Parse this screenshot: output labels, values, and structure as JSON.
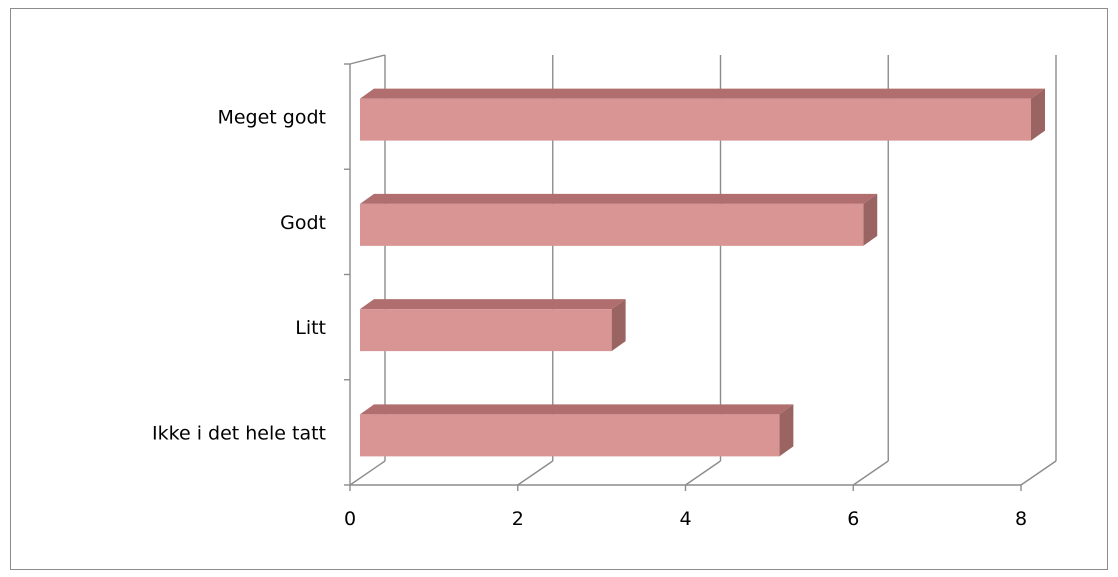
{
  "chart_data": {
    "type": "bar",
    "orientation": "horizontal",
    "style": "3d",
    "categories": [
      "Meget godt",
      "Godt",
      "Litt",
      "Ikke i det hele tatt"
    ],
    "values": [
      8,
      6,
      3,
      5
    ],
    "xlim": [
      0,
      8
    ],
    "xticks": [
      0,
      2,
      4,
      6,
      8
    ],
    "grid": true,
    "legend": "none",
    "colors": {
      "bar_front": "#d99594",
      "bar_top": "#b06f6e",
      "bar_side": "#9a6463",
      "grid": "#8c8c8c",
      "frame": "#8c8c8c"
    }
  }
}
